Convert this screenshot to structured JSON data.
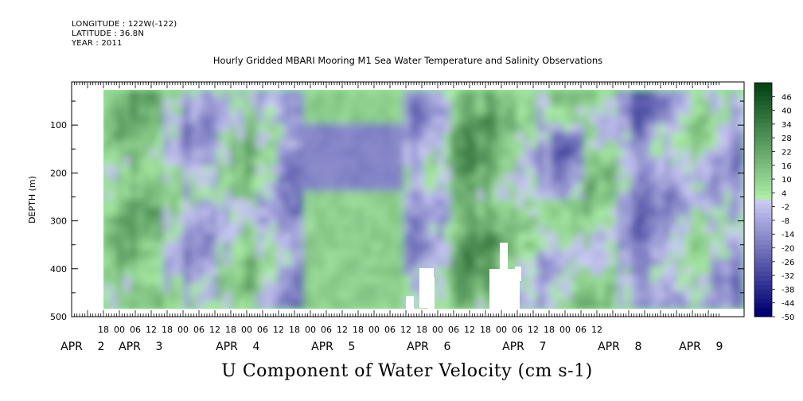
{
  "header": {
    "longitude": "LONGITUDE : 122W(-122)",
    "latitude": "LATITUDE : 36.8N",
    "year": "YEAR : 2011"
  },
  "title": "Hourly Gridded MBARI Mooring M1 Sea Water Temperature and Salinity Observations",
  "caption": "U Component of Water Velocity (cm s-1)",
  "chart_data": {
    "type": "heatmap",
    "title": "Hourly Gridded MBARI Mooring M1 Sea Water Temperature and Salinity Observations",
    "xlabel": "",
    "ylabel": "DEPTH (m)",
    "colorbar_label": "U Component of Water Velocity (cm s-1)",
    "x_hour_ticks": [
      "18",
      "00",
      "06",
      "12",
      "18",
      "00",
      "06",
      "12",
      "18",
      "00",
      "06",
      "12",
      "18",
      "00",
      "06",
      "12",
      "18",
      "00",
      "06",
      "12",
      "18",
      "00",
      "06",
      "12",
      "18",
      "00",
      "06",
      "12",
      "18",
      "00",
      "06",
      "12"
    ],
    "x_day_labels": [
      {
        "month": "APR",
        "day": "2"
      },
      {
        "month": "APR",
        "day": "3"
      },
      {
        "month": "APR",
        "day": "4"
      },
      {
        "month": "APR",
        "day": "5"
      },
      {
        "month": "APR",
        "day": "6"
      },
      {
        "month": "APR",
        "day": "7"
      },
      {
        "month": "APR",
        "day": "8"
      },
      {
        "month": "APR",
        "day": "9"
      }
    ],
    "y_ticks": [
      100,
      200,
      300,
      400,
      500
    ],
    "ylim": [
      500,
      10
    ],
    "y_reversed": true,
    "colorbar_levels": [
      46,
      40,
      34,
      28,
      22,
      16,
      10,
      4,
      -2,
      -8,
      -14,
      -20,
      -26,
      -32,
      -38,
      -44,
      -50
    ],
    "colorbar_range": [
      -50,
      52
    ],
    "colormap_negative": "blue",
    "colormap_positive": "green"
  }
}
